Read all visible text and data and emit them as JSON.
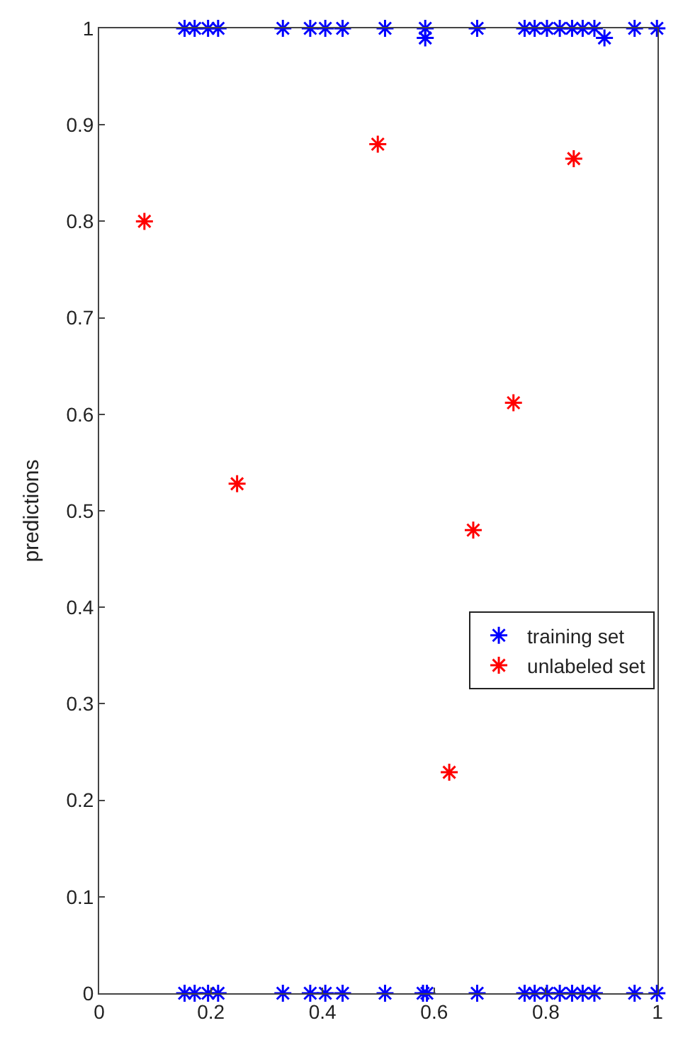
{
  "chart_data": {
    "type": "scatter",
    "ylabel": "predictions",
    "marker": "cross",
    "legend": "right",
    "xlim": [
      0,
      1
    ],
    "ylim": [
      0,
      1
    ],
    "xticks": [
      0,
      0.2,
      0.4,
      0.6,
      0.8,
      1
    ],
    "yticks": [
      0,
      0.1,
      0.2,
      0.3,
      0.4,
      0.5,
      0.6,
      0.7,
      0.8,
      0.9,
      1
    ],
    "series": [
      {
        "name": "training set",
        "color": "#0000ff",
        "x": [
          0.153,
          0.171,
          0.195,
          0.213,
          0.329,
          0.378,
          0.405,
          0.436,
          0.512,
          0.584,
          0.584,
          0.677,
          0.762,
          0.78,
          0.802,
          0.825,
          0.847,
          0.866,
          0.887,
          0.905,
          0.959,
          0.999,
          0.153,
          0.171,
          0.195,
          0.213,
          0.329,
          0.378,
          0.405,
          0.436,
          0.512,
          0.58,
          0.587,
          0.677,
          0.762,
          0.78,
          0.802,
          0.825,
          0.847,
          0.866,
          0.887,
          0.959,
          0.999
        ],
        "values": [
          1,
          1,
          1,
          1,
          1,
          1,
          1,
          1,
          1,
          1,
          0.99,
          1,
          1,
          1,
          1,
          1,
          1,
          1,
          1,
          0.99,
          1,
          1,
          0,
          0,
          0,
          0,
          0,
          0,
          0,
          0,
          0,
          0,
          0,
          0,
          0,
          0,
          0,
          0,
          0,
          0,
          0,
          0,
          0
        ]
      },
      {
        "name": "unlabeled set",
        "color": "#ff0000",
        "x": [
          0.081,
          0.247,
          0.499,
          0.627,
          0.67,
          0.742,
          0.85
        ],
        "values": [
          0.8,
          0.528,
          0.88,
          0.229,
          0.48,
          0.612,
          0.865
        ]
      }
    ]
  }
}
